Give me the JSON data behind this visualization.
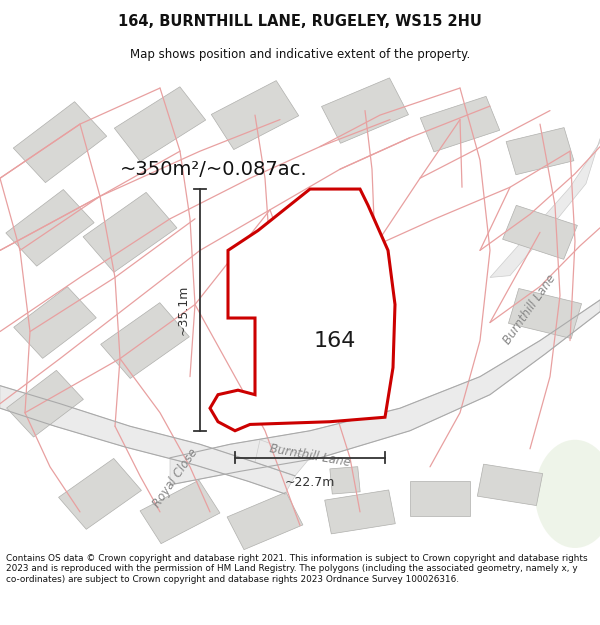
{
  "title": "164, BURNTHILL LANE, RUGELEY, WS15 2HU",
  "subtitle": "Map shows position and indicative extent of the property.",
  "area_text": "~350m²/~0.087ac.",
  "width_label": "~22.7m",
  "height_label": "~35.1m",
  "number_label": "164",
  "footer": "Contains OS data © Crown copyright and database right 2021. This information is subject to Crown copyright and database rights 2023 and is reproduced with the permission of HM Land Registry. The polygons (including the associated geometry, namely x, y co-ordinates) are subject to Crown copyright and database rights 2023 Ordnance Survey 100026316.",
  "plot_edge": "#cc0000",
  "pink_line_color": "#e8a0a0",
  "building_fill": "#d8d8d5",
  "building_edge": "#b0b0ad",
  "road_fill": "#e8e8e4",
  "road_edge": "#c8c8c4",
  "map_bg": "#f4f4f0",
  "dim_color": "#333333",
  "street_color": "#aaaaaa"
}
